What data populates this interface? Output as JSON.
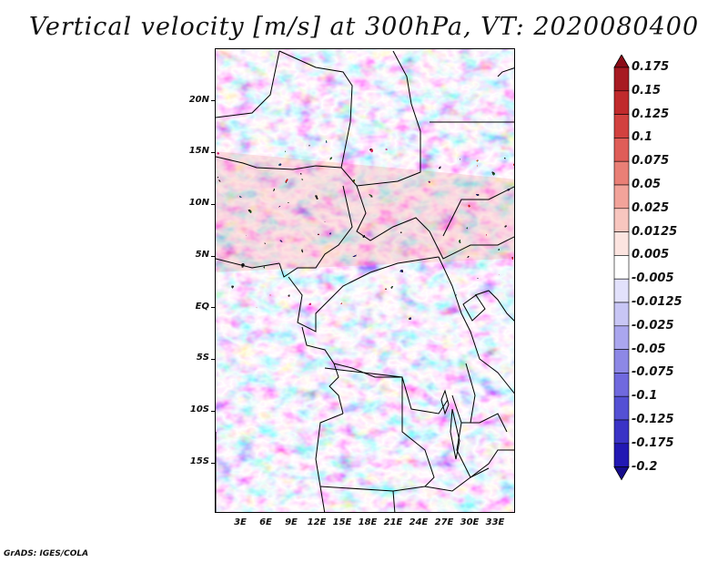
{
  "title": "Vertical velocity [m/s] at 300hPa, VT: 2020080400",
  "footer": "GrADS: IGES/COLA",
  "map": {
    "y_ticks": [
      "20N",
      "15N",
      "10N",
      "5N",
      "EQ",
      "5S",
      "10S",
      "15S"
    ],
    "x_ticks": [
      "3E",
      "6E",
      "9E",
      "12E",
      "15E",
      "18E",
      "21E",
      "24E",
      "27E",
      "30E",
      "33E"
    ]
  },
  "colorbar": {
    "levels": [
      "0.175",
      "0.15",
      "0.125",
      "0.1",
      "0.075",
      "0.05",
      "0.025",
      "0.0125",
      "0.005",
      "-0.005",
      "-0.0125",
      "-0.025",
      "-0.05",
      "-0.075",
      "-0.1",
      "-0.125",
      "-0.175",
      "-0.2"
    ],
    "colors": [
      "#8b0d18",
      "#a71a22",
      "#c02a2c",
      "#d2413f",
      "#df5d58",
      "#e97f76",
      "#f2a39a",
      "#f8c6bf",
      "#fce4e0",
      "#ffffff",
      "#e2e1fb",
      "#c8c6f5",
      "#aaa6ee",
      "#8d88e6",
      "#7069de",
      "#5450d4",
      "#3a33c6",
      "#2218b3",
      "#160c8c"
    ]
  }
}
